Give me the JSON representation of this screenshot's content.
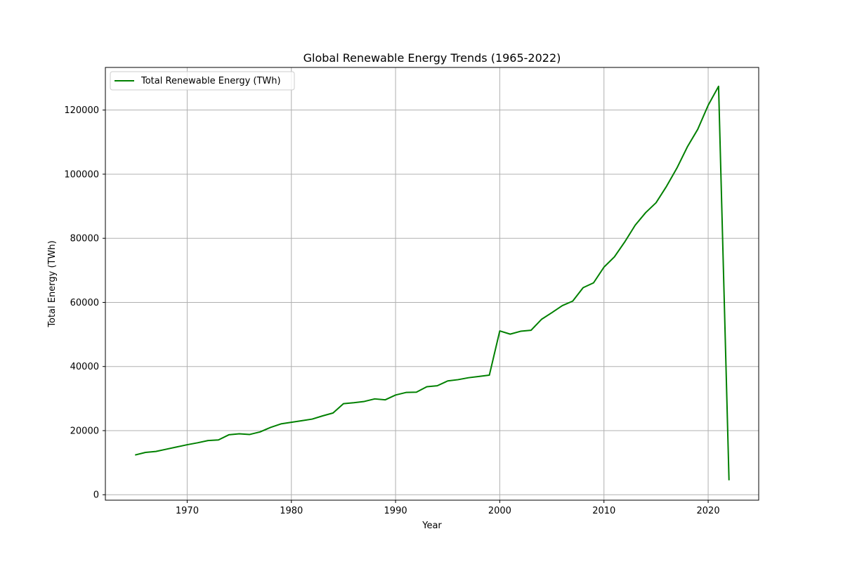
{
  "chart_data": {
    "type": "line",
    "title": "Global Renewable Energy Trends (1965-2022)",
    "xlabel": "Year",
    "ylabel": "Total Energy (TWh)",
    "xlim": [
      1962.15,
      2024.85
    ],
    "ylim": [
      -1700,
      133300
    ],
    "x_ticks": [
      1970,
      1980,
      1990,
      2000,
      2010,
      2020
    ],
    "y_ticks": [
      0,
      20000,
      40000,
      60000,
      80000,
      100000,
      120000
    ],
    "grid": true,
    "legend_position": "upper-left",
    "series": [
      {
        "name": "Total Renewable Energy (TWh)",
        "color": "#008000",
        "x": [
          1965,
          1966,
          1967,
          1968,
          1969,
          1970,
          1971,
          1972,
          1973,
          1974,
          1975,
          1976,
          1977,
          1978,
          1979,
          1980,
          1981,
          1982,
          1983,
          1984,
          1985,
          1986,
          1987,
          1988,
          1989,
          1990,
          1991,
          1992,
          1993,
          1994,
          1995,
          1996,
          1997,
          1998,
          1999,
          2000,
          2001,
          2002,
          2003,
          2004,
          2005,
          2006,
          2007,
          2008,
          2009,
          2010,
          2011,
          2012,
          2013,
          2014,
          2015,
          2016,
          2017,
          2018,
          2019,
          2020,
          2021,
          2022
        ],
        "values": [
          12400,
          13200,
          13500,
          14200,
          14900,
          15600,
          16200,
          16900,
          17100,
          18700,
          19000,
          18800,
          19600,
          21000,
          22100,
          22600,
          23100,
          23600,
          24600,
          25500,
          28400,
          28700,
          29100,
          29900,
          29600,
          31100,
          31900,
          32000,
          33700,
          34000,
          35500,
          35900,
          36500,
          36900,
          37300,
          51100,
          50100,
          51000,
          51300,
          54700,
          56800,
          59000,
          60400,
          64600,
          66100,
          71000,
          74200,
          78900,
          84100,
          88000,
          91100,
          96200,
          101900,
          108500,
          114000,
          121500,
          127400,
          4500
        ]
      }
    ]
  }
}
